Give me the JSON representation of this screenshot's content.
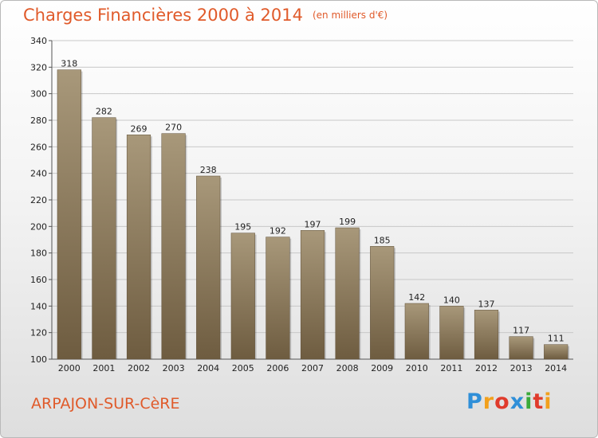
{
  "header": {
    "title": "Charges Financières 2000 à 2014",
    "unit": "(en milliers d'€)"
  },
  "footer": {
    "commune": "ARPAJON-SUR-CèRE",
    "logo_text": "Proxiti",
    "logo_colors": [
      "#2f8fd8",
      "#f2a01c",
      "#e03b2c",
      "#2f8fd8",
      "#3aaa3a",
      "#e03b2c",
      "#f2a01c"
    ]
  },
  "colors": {
    "accent": "#e05a2a",
    "bar_top": "#a8987a",
    "bar_bottom": "#6e5c40",
    "grid": "#c8c8c8"
  },
  "chart_data": {
    "type": "bar",
    "title": "Charges Financières 2000 à 2014",
    "subtitle": "(en milliers d'€)",
    "xlabel": "",
    "ylabel": "",
    "categories": [
      "2000",
      "2001",
      "2002",
      "2003",
      "2004",
      "2005",
      "2006",
      "2007",
      "2008",
      "2009",
      "2010",
      "2011",
      "2012",
      "2013",
      "2014"
    ],
    "values": [
      318,
      282,
      269,
      270,
      238,
      195,
      192,
      197,
      199,
      185,
      142,
      140,
      137,
      117,
      111
    ],
    "ylim": [
      100,
      340
    ],
    "yticks": [
      100,
      120,
      140,
      160,
      180,
      200,
      220,
      240,
      260,
      280,
      300,
      320,
      340
    ],
    "grid": true,
    "data_labels": true
  }
}
